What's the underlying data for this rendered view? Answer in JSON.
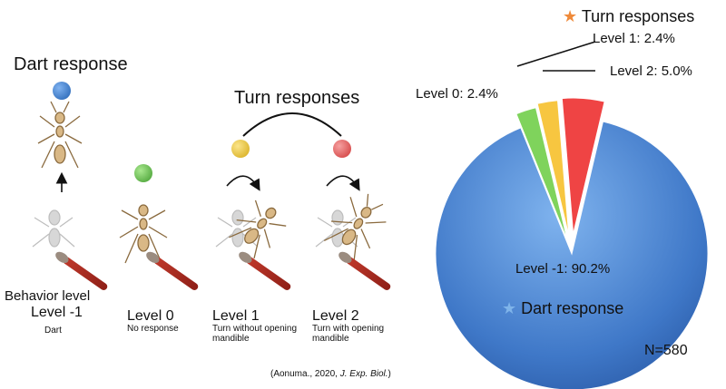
{
  "left_panel": {
    "dart_response_title": "Dart response",
    "turn_responses_title": "Turn responses",
    "behavior_level_label": "Behavior level",
    "levels": [
      {
        "label": "Level -1",
        "sub": "Dart",
        "color": "#2a6bb5"
      },
      {
        "label": "Level 0",
        "sub": "No response",
        "color": "#58b845"
      },
      {
        "label": "Level 1",
        "sub": "Turn without opening mandible",
        "color": "#e7c22a"
      },
      {
        "label": "Level 2",
        "sub": "Turn with opening mandible",
        "color": "#e14b4b"
      }
    ],
    "citation": {
      "prefix": "(Aonuma., 2020, ",
      "journal": "J. Exp. Biol.",
      "suffix": ")"
    }
  },
  "pie": {
    "n_label": "N=580",
    "turn_legend": "Turn responses",
    "dart_legend": "Dart response",
    "labels": {
      "level_neg1": "Level -1: 90.2%",
      "level_0": "Level 0: 2.4%",
      "level_1": "Level 1: 2.4%",
      "level_2": "Level 2:  5.0%"
    }
  },
  "chart_data": {
    "type": "pie",
    "categories": [
      "Level -1",
      "Level 0",
      "Level 1",
      "Level 2"
    ],
    "values": [
      90.2,
      2.4,
      2.4,
      5.0
    ],
    "colors": [
      "#4d87d6",
      "#7fd35c",
      "#f7c640",
      "#ef4444"
    ],
    "exploded": [
      "Level 0",
      "Level 1",
      "Level 2"
    ],
    "annotations": [
      "N=580"
    ]
  },
  "icons": {
    "turn_star_color": "#ef8a3a",
    "dart_star_color": "#7fb4ea"
  }
}
